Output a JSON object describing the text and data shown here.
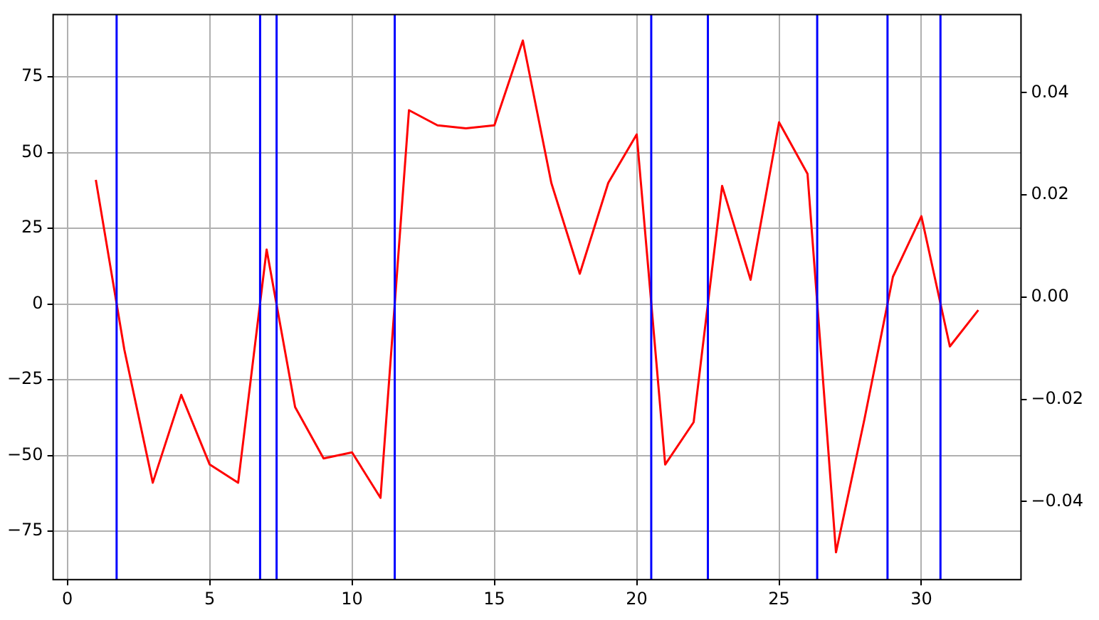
{
  "chart_data": {
    "type": "line",
    "x": [
      1,
      2,
      3,
      4,
      5,
      6,
      7,
      8,
      9,
      10,
      11,
      12,
      13,
      14,
      15,
      16,
      17,
      18,
      19,
      20,
      21,
      22,
      23,
      24,
      25,
      26,
      27,
      28,
      29,
      30,
      31,
      32
    ],
    "series": [
      {
        "color": "#ff0000",
        "values": [
          41,
          -15,
          -59,
          -30,
          -53,
          -59,
          18,
          -34,
          -51,
          -49,
          -64,
          64,
          59,
          58,
          59,
          87,
          40,
          10,
          40,
          56,
          -53,
          -39,
          39,
          8,
          60,
          43,
          -82,
          -38,
          9,
          29,
          -14,
          -2
        ]
      }
    ],
    "xlim": [
      -0.5,
      33.5
    ],
    "xticks": [
      0,
      5,
      10,
      15,
      20,
      25,
      30
    ],
    "ylim": [
      -91,
      95.6
    ],
    "yticks": [
      {
        "value": -75,
        "label": "−75"
      },
      {
        "value": -50,
        "label": "−50"
      },
      {
        "value": -25,
        "label": "−25"
      },
      0,
      25,
      50,
      75
    ],
    "y2lim": [
      -0.0553,
      0.0553
    ],
    "y2ticks": [
      {
        "value": -0.04,
        "label": "−0.04"
      },
      {
        "value": -0.02,
        "label": "−0.02"
      },
      {
        "value": 0,
        "label": "0.00"
      },
      {
        "value": 0.02,
        "label": "0.02"
      },
      {
        "value": 0.04,
        "label": "0.04"
      }
    ],
    "ref_lines": [
      {
        "axis": "x",
        "value": 1.73,
        "color": "#0000ff"
      },
      {
        "axis": "x",
        "value": 6.77,
        "color": "#0000ff"
      },
      {
        "axis": "x",
        "value": 7.35,
        "color": "#0000ff"
      },
      {
        "axis": "x",
        "value": 11.5,
        "color": "#0000ff"
      },
      {
        "axis": "x",
        "value": 20.51,
        "color": "#0000ff"
      },
      {
        "axis": "x",
        "value": 22.5,
        "color": "#0000ff"
      },
      {
        "axis": "x",
        "value": 26.34,
        "color": "#0000ff"
      },
      {
        "axis": "x",
        "value": 28.81,
        "color": "#0000ff"
      },
      {
        "axis": "x",
        "value": 30.67,
        "color": "#0000ff"
      }
    ],
    "grid": true,
    "legend": false,
    "marker": "none",
    "line_style": "solid"
  }
}
